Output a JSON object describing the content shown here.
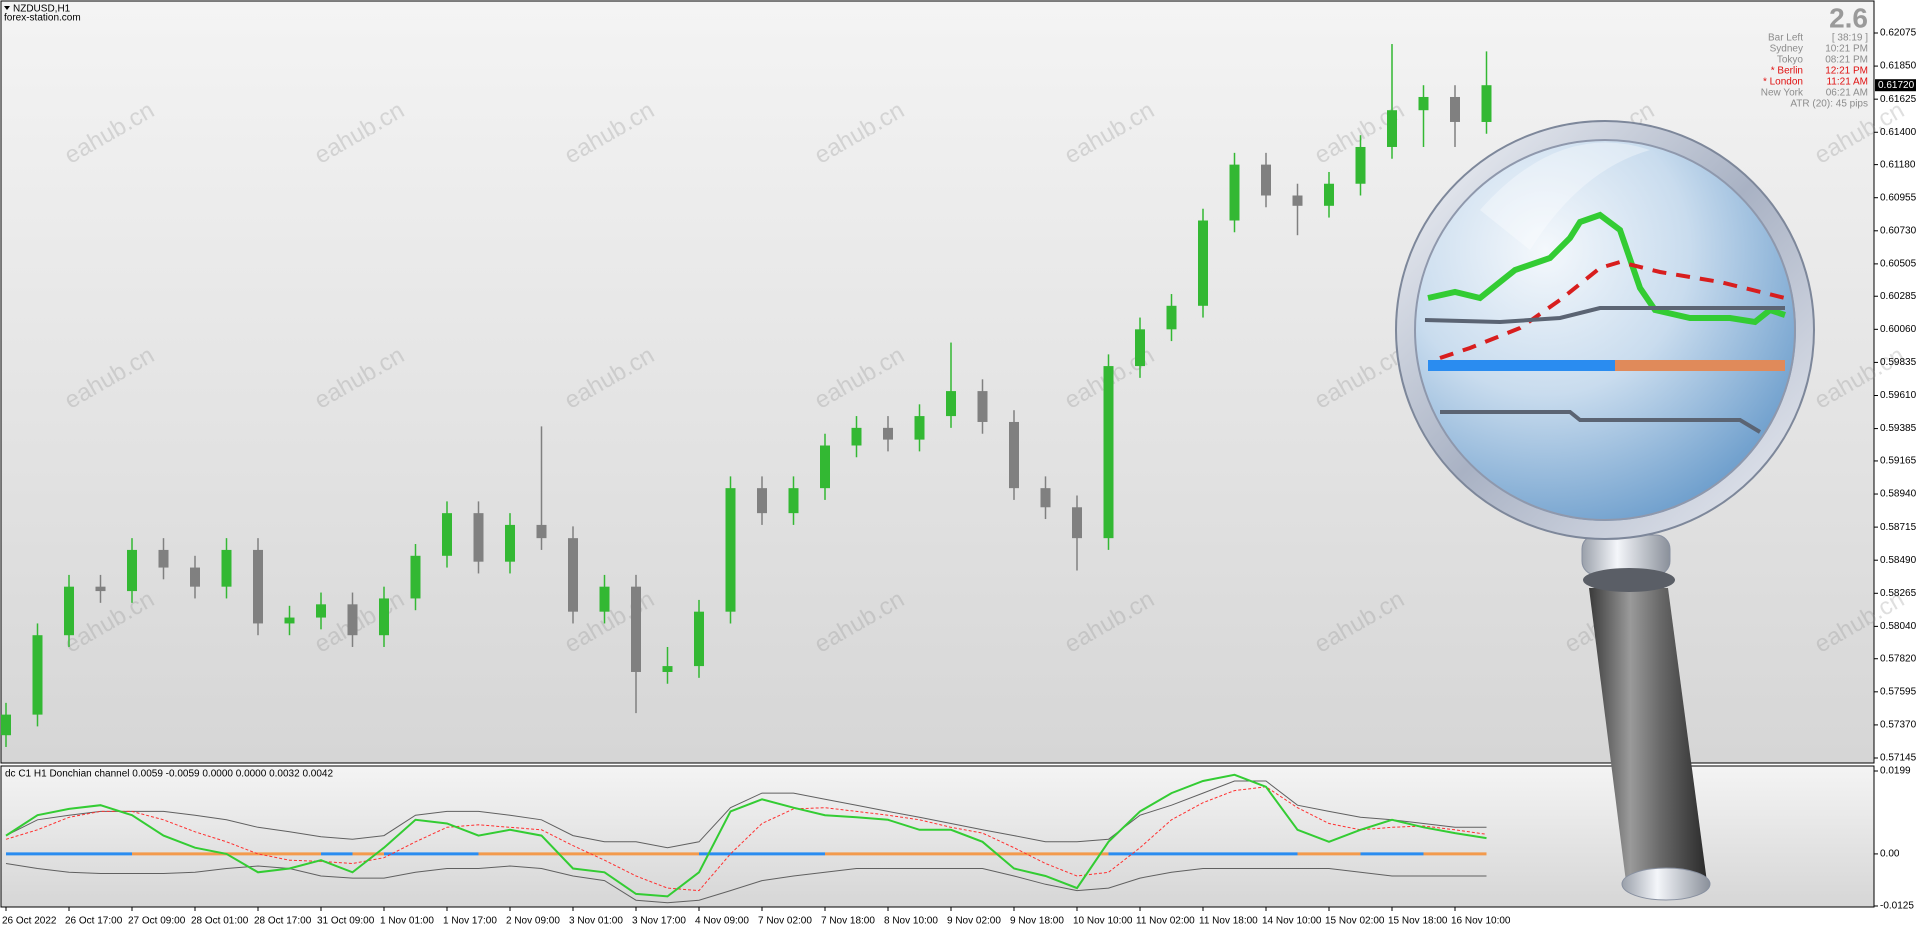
{
  "chart_data": {
    "type": "candlestick",
    "symbol": "NZDUSD,H1",
    "source": "forex-station.com",
    "categories": [
      "26 Oct 2022",
      null,
      "26 Oct 17:00",
      null,
      "27 Oct 09:00",
      null,
      "28 Oct 01:00",
      null,
      "28 Oct 17:00",
      null,
      "31 Oct 09:00",
      null,
      "1 Nov 01:00",
      null,
      "1 Nov 17:00",
      null,
      "2 Nov 09:00",
      null,
      "3 Nov 01:00",
      null,
      "3 Nov 17:00",
      null,
      "4 Nov 09:00",
      null,
      "7 Nov 02:00",
      null,
      "7 Nov 18:00",
      null,
      "8 Nov 10:00",
      null,
      "9 Nov 02:00",
      null,
      "9 Nov 18:00",
      null,
      "10 Nov 10:00",
      null,
      "11 Nov 02:00",
      null,
      "11 Nov 18:00",
      null,
      "14 Nov 10:00",
      null,
      "15 Nov 02:00",
      null,
      "15 Nov 18:00",
      null,
      "16 Nov 10:00",
      null
    ],
    "open": [
      0.573,
      0.5744,
      0.5798,
      0.5831,
      0.5828,
      0.5856,
      0.5844,
      0.5831,
      0.5856,
      0.5806,
      0.581,
      0.5819,
      0.5798,
      0.5823,
      0.5852,
      0.5881,
      0.5848,
      0.5873,
      0.5864,
      0.5814,
      0.5831,
      0.5773,
      0.5777,
      0.5814,
      0.5898,
      0.5881,
      0.5898,
      0.5927,
      0.5939,
      0.5931,
      0.5947,
      0.5964,
      0.5943,
      0.5898,
      0.5885,
      0.5864,
      0.5981,
      0.6006,
      0.6022,
      0.608,
      0.6118,
      0.6097,
      0.609,
      0.6105,
      0.613,
      0.6155,
      0.6164,
      0.6147
    ],
    "high": [
      0.5752,
      0.5806,
      0.5839,
      0.5839,
      0.5864,
      0.5864,
      0.5852,
      0.5864,
      0.5864,
      0.5818,
      0.5827,
      0.5827,
      0.5831,
      0.586,
      0.5889,
      0.5889,
      0.5881,
      0.594,
      0.5872,
      0.5839,
      0.5839,
      0.579,
      0.5822,
      0.5906,
      0.5906,
      0.5906,
      0.5935,
      0.5947,
      0.5947,
      0.5955,
      0.5997,
      0.5972,
      0.5951,
      0.5906,
      0.5893,
      0.5989,
      0.6014,
      0.603,
      0.6088,
      0.6126,
      0.6126,
      0.6105,
      0.6113,
      0.6138,
      0.62,
      0.6172,
      0.6172,
      0.6195
    ],
    "low": [
      0.5722,
      0.5736,
      0.579,
      0.582,
      0.582,
      0.5836,
      0.5823,
      0.5823,
      0.5798,
      0.5798,
      0.5802,
      0.579,
      0.579,
      0.5815,
      0.5844,
      0.584,
      0.584,
      0.5856,
      0.5806,
      0.5806,
      0.5745,
      0.5765,
      0.5769,
      0.5806,
      0.5873,
      0.5873,
      0.589,
      0.5919,
      0.5923,
      0.5923,
      0.5939,
      0.5935,
      0.589,
      0.5877,
      0.5842,
      0.5856,
      0.5973,
      0.5998,
      0.6014,
      0.6072,
      0.6089,
      0.607,
      0.6082,
      0.6097,
      0.6122,
      0.613,
      0.613,
      0.6139
    ],
    "close": [
      0.5744,
      0.5798,
      0.5831,
      0.5828,
      0.5856,
      0.5844,
      0.5831,
      0.5856,
      0.5806,
      0.581,
      0.5819,
      0.5798,
      0.5823,
      0.5852,
      0.5881,
      0.5848,
      0.5873,
      0.5864,
      0.5814,
      0.5831,
      0.5773,
      0.5777,
      0.5814,
      0.5898,
      0.5881,
      0.5898,
      0.5927,
      0.5939,
      0.5931,
      0.5947,
      0.5964,
      0.5943,
      0.5898,
      0.5885,
      0.5864,
      0.5981,
      0.6006,
      0.6022,
      0.608,
      0.6118,
      0.6097,
      0.609,
      0.6105,
      0.613,
      0.6155,
      0.6164,
      0.6147,
      0.6172
    ],
    "up_color": "#33b833",
    "down_color": "#808080",
    "ylim": [
      0.57145,
      0.62075
    ],
    "yticks": [
      0.62075,
      {
        "value": 0.6185,
        "label": "0.61850"
      },
      0.61625,
      {
        "value": 0.614,
        "label": "0.61400"
      },
      {
        "value": 0.6118,
        "label": "0.61180"
      },
      0.60955,
      {
        "value": 0.6073,
        "label": "0.60730"
      },
      0.60505,
      0.60285,
      {
        "value": 0.6006,
        "label": "0.60060"
      },
      0.59835,
      {
        "value": 0.5961,
        "label": "0.59610"
      },
      0.59385,
      0.59165,
      {
        "value": 0.5894,
        "label": "0.58940"
      },
      0.58715,
      {
        "value": 0.5849,
        "label": "0.58490"
      },
      0.58265,
      {
        "value": 0.5804,
        "label": "0.58040"
      },
      {
        "value": 0.5782,
        "label": "0.57820"
      },
      0.57595,
      {
        "value": 0.5737,
        "label": "0.57370"
      },
      0.57145
    ],
    "current_price": {
      "value": 0.6172,
      "label": "0.61720"
    },
    "indicator": {
      "type": "line",
      "title": "dc C1 H1 Donchian channel 0.0059 -0.0059 0.0000 0.0000 0.0032 0.0042",
      "ylim": [
        -0.0125,
        0.0199
      ],
      "yticks": [
        0.0199,
        {
          "value": 0,
          "label": "0.00"
        },
        -0.0125
      ],
      "up_color": "#2a8cf0",
      "down_color": "#f39a4c",
      "series": [
        {
          "color": "#33cc33",
          "width": 2,
          "dashed": false,
          "values": [
            0.0044,
            0.0093,
            0.0108,
            0.0117,
            0.0093,
            0.0044,
            0.0015,
            0,
            -0.0044,
            -0.0035,
            -0.0015,
            -0.0044,
            0.0015,
            0.0082,
            0.0073,
            0.0044,
            0.0058,
            0.0044,
            -0.0035,
            -0.0044,
            -0.0096,
            -0.0102,
            -0.0044,
            0.0102,
            0.0131,
            0.0111,
            0.0093,
            0.0088,
            0.0082,
            0.0058,
            0.0058,
            0.0029,
            -0.0035,
            -0.0053,
            -0.0082,
            0.0029,
            0.0102,
            0.0146,
            0.0175,
            0.019,
            0.0161,
            0.0058,
            0.0029,
            0.0058,
            0.0082,
            0.0064,
            0.005,
            0.0038
          ]
        },
        {
          "color": "#ff3030",
          "width": 1,
          "dashed": true,
          "values": [
            0.0035,
            0.0058,
            0.0088,
            0.0102,
            0.0102,
            0.0082,
            0.0053,
            0.0029,
            0,
            -0.0015,
            -0.0018,
            -0.0023,
            -0.0009,
            0.0029,
            0.0064,
            0.007,
            0.0064,
            0.0058,
            0.002,
            -0.0015,
            -0.0053,
            -0.0082,
            -0.0088,
            0,
            0.0073,
            0.0108,
            0.0111,
            0.0102,
            0.0093,
            0.0082,
            0.0064,
            0.005,
            0.0015,
            -0.0023,
            -0.0053,
            -0.0044,
            0.0015,
            0.0082,
            0.0123,
            0.0152,
            0.0161,
            0.0111,
            0.0073,
            0.0058,
            0.0064,
            0.0067,
            0.0058,
            0.0047
          ]
        },
        {
          "color": "#606060",
          "width": 1,
          "dashed": false,
          "values": [
            0.0044,
            0.0082,
            0.0093,
            0.0102,
            0.0102,
            0.0102,
            0.0093,
            0.0082,
            0.0064,
            0.0053,
            0.0041,
            0.0035,
            0.0044,
            0.0093,
            0.0102,
            0.0102,
            0.0093,
            0.0082,
            0.0044,
            0.0029,
            0.0029,
            0.0015,
            0.0029,
            0.0111,
            0.0146,
            0.0146,
            0.0131,
            0.0117,
            0.0102,
            0.0088,
            0.0073,
            0.0058,
            0.0044,
            0.0029,
            0.0029,
            0.0035,
            0.0093,
            0.0117,
            0.0146,
            0.0175,
            0.0175,
            0.0117,
            0.0102,
            0.0088,
            0.0082,
            0.0073,
            0.0064,
            0.0064
          ]
        },
        {
          "color": "#606060",
          "width": 1,
          "dashed": false,
          "values": [
            -0.0023,
            -0.0035,
            -0.0044,
            -0.0047,
            -0.0047,
            -0.0047,
            -0.0044,
            -0.0035,
            -0.0029,
            -0.0035,
            -0.0053,
            -0.0058,
            -0.0058,
            -0.0044,
            -0.0035,
            -0.0035,
            -0.0029,
            -0.0035,
            -0.0053,
            -0.0064,
            -0.0111,
            -0.0117,
            -0.0111,
            -0.0088,
            -0.0064,
            -0.0053,
            -0.0044,
            -0.0035,
            -0.0035,
            -0.0035,
            -0.0035,
            -0.0035,
            -0.0053,
            -0.0073,
            -0.0088,
            -0.0082,
            -0.0058,
            -0.0044,
            -0.0035,
            -0.0035,
            -0.0035,
            -0.0035,
            -0.0035,
            -0.0044,
            -0.0053,
            -0.0053,
            -0.0053,
            -0.0053
          ]
        }
      ]
    }
  },
  "watermark": "eahub.cn",
  "info_panel": {
    "spread": "2.6",
    "rows": [
      {
        "label": "Bar Left",
        "value": "[ 38:19 ]",
        "color": "#8c8c8c"
      },
      {
        "label": "Sydney",
        "value": "10:21 PM",
        "color": "#8c8c8c"
      },
      {
        "label": "Tokyo",
        "value": "08:21 PM",
        "color": "#8c8c8c"
      },
      {
        "label": "* Berlin",
        "value": "12:21 PM",
        "color": "#e01010"
      },
      {
        "label": "* London",
        "value": "11:21 AM",
        "color": "#e01010"
      },
      {
        "label": "New York",
        "value": "06:21 AM",
        "color": "#8c8c8c"
      }
    ],
    "atr": "ATR (20): 45 pips"
  }
}
